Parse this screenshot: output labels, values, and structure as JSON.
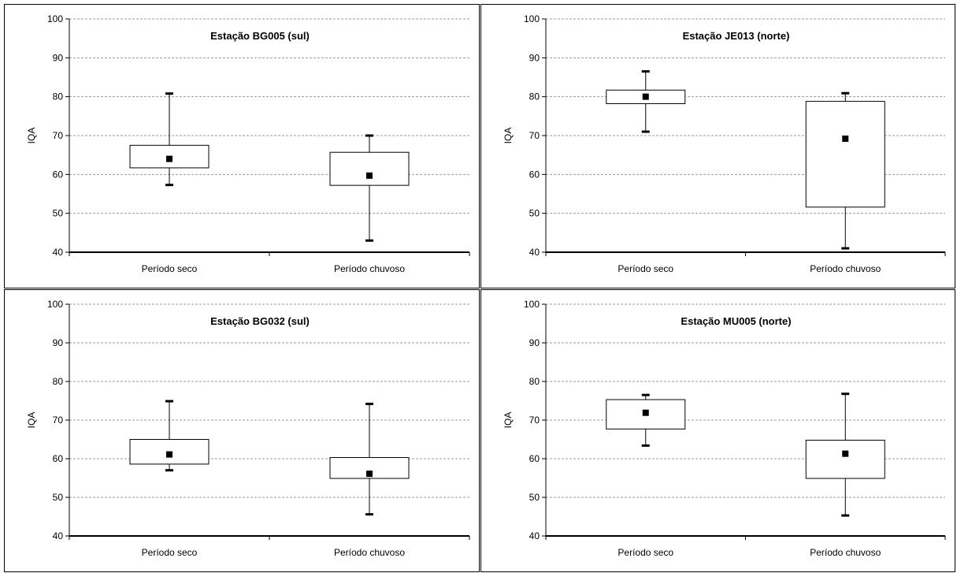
{
  "chart_data": [
    {
      "type": "box",
      "title": "Estação BG005 (sul)",
      "xlabel": "",
      "ylabel": "IQA",
      "ylim": [
        40,
        100
      ],
      "yticks": [
        40,
        50,
        60,
        70,
        80,
        90,
        100
      ],
      "grid": true,
      "categories": [
        "Período seco",
        "Período chuvoso"
      ],
      "boxes": [
        {
          "min": 57.3,
          "q1": 61.7,
          "mean": 64.0,
          "q3": 67.5,
          "max": 80.8
        },
        {
          "min": 43.0,
          "q1": 57.2,
          "mean": 59.7,
          "q3": 65.7,
          "max": 70.0
        }
      ]
    },
    {
      "type": "box",
      "title": "Estação JE013 (norte)",
      "xlabel": "",
      "ylabel": "IQA",
      "ylim": [
        40,
        100
      ],
      "yticks": [
        40,
        50,
        60,
        70,
        80,
        90,
        100
      ],
      "grid": true,
      "categories": [
        "Período seco",
        "Período chuvoso"
      ],
      "boxes": [
        {
          "min": 71.0,
          "q1": 78.2,
          "mean": 80.0,
          "q3": 81.7,
          "max": 86.5
        },
        {
          "min": 41.0,
          "q1": 51.6,
          "mean": 69.2,
          "q3": 78.8,
          "max": 80.9
        }
      ]
    },
    {
      "type": "box",
      "title": "Estação BG032 (sul)",
      "xlabel": "",
      "ylabel": "IQA",
      "ylim": [
        40,
        100
      ],
      "yticks": [
        40,
        50,
        60,
        70,
        80,
        90,
        100
      ],
      "grid": true,
      "categories": [
        "Período seco",
        "Período chuvoso"
      ],
      "boxes": [
        {
          "min": 57.0,
          "q1": 58.6,
          "mean": 61.1,
          "q3": 65.0,
          "max": 74.9
        },
        {
          "min": 45.6,
          "q1": 54.9,
          "mean": 56.1,
          "q3": 60.3,
          "max": 74.2
        }
      ]
    },
    {
      "type": "box",
      "title": "Estação MU005 (norte)",
      "xlabel": "",
      "ylabel": "IQA",
      "ylim": [
        40,
        100
      ],
      "yticks": [
        40,
        50,
        60,
        70,
        80,
        90,
        100
      ],
      "grid": true,
      "categories": [
        "Período seco",
        "Período chuvoso"
      ],
      "boxes": [
        {
          "min": 63.4,
          "q1": 67.7,
          "mean": 71.9,
          "q3": 75.3,
          "max": 76.5
        },
        {
          "min": 45.3,
          "q1": 54.9,
          "mean": 61.3,
          "q3": 64.8,
          "max": 76.8
        }
      ]
    }
  ]
}
